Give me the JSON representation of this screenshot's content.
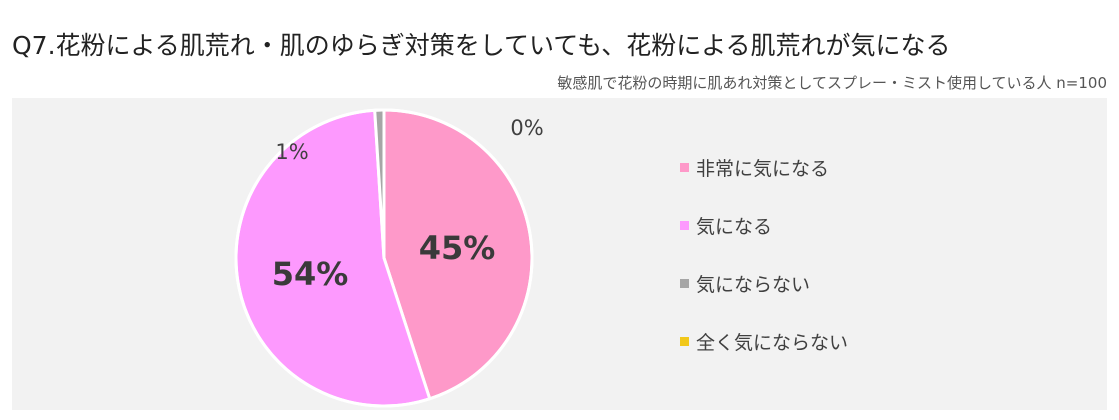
{
  "title": "Q7.花粉による肌荒れ・肌のゆらぎ対策をしていても、花粉による肌荒れが気になる",
  "subtitle": "敏感肌で花粉の時期に肌あれ対策としてスプレー・ミスト使用している人  n=100",
  "chart_data": {
    "type": "pie",
    "categories": [
      "非常に気になる",
      "気になる",
      "気にならない",
      "全く気にならない"
    ],
    "values": [
      45,
      54,
      1,
      0
    ],
    "labels": [
      "45%",
      "54%",
      "1%",
      "0%"
    ],
    "colors": [
      "#fe99c9",
      "#fd99fe",
      "#a6a6a6",
      "#f2c81a"
    ],
    "legend_position": "right"
  }
}
